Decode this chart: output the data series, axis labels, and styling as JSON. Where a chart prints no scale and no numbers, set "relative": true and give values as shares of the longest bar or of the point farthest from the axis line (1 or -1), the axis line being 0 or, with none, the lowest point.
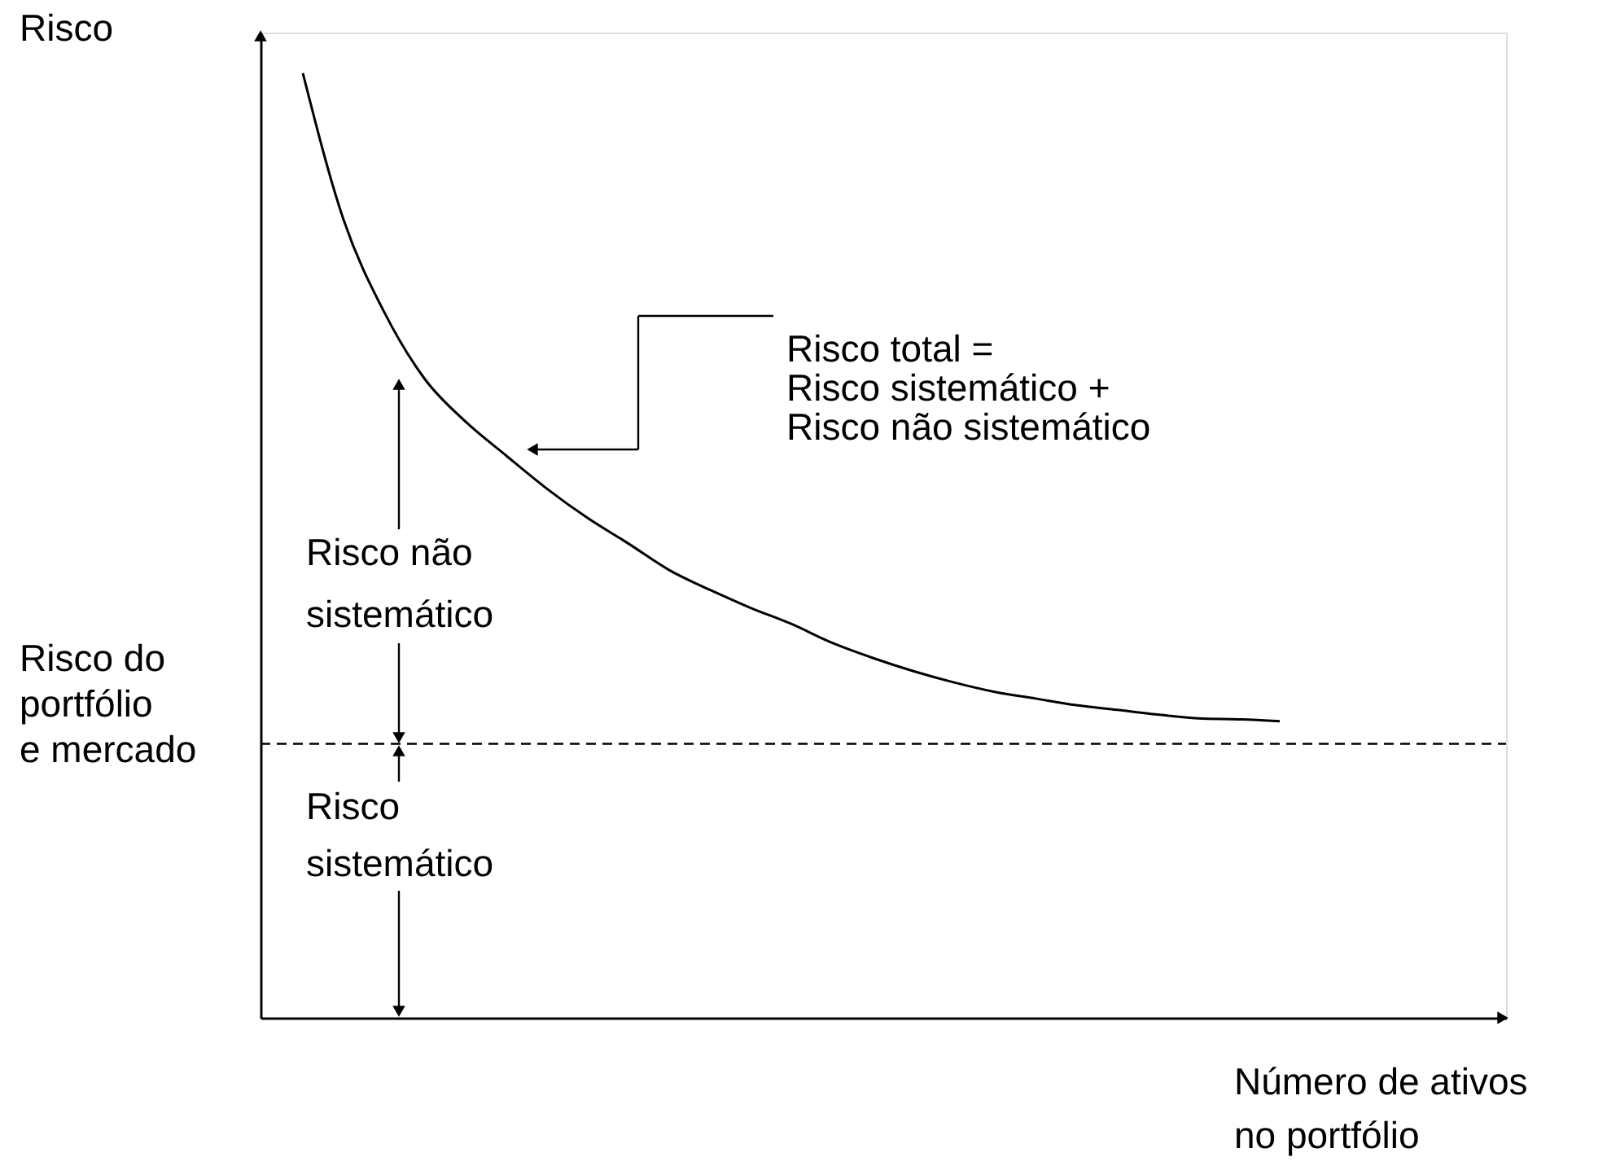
{
  "chart_data": {
    "type": "line",
    "relative": true,
    "ylabel": "Risco",
    "xlabel": "Número de ativos\nno portfólio",
    "categories": [
      null,
      null,
      null,
      null,
      null,
      null,
      null,
      null,
      null,
      null,
      null,
      null,
      null,
      null,
      null,
      null,
      null,
      null,
      null,
      null,
      null,
      null,
      null,
      null,
      null
    ],
    "series": [
      {
        "color": "#000000",
        "values": [
          1.0,
          0.845,
          0.747,
          0.676,
          0.631,
          0.595,
          0.56,
          0.529,
          0.502,
          0.474,
          0.453,
          0.434,
          0.417,
          0.397,
          0.381,
          0.367,
          0.355,
          0.345,
          0.338,
          0.331,
          0.326,
          0.321,
          0.317,
          0.316,
          0.314
        ]
      }
    ],
    "ref_lines": [
      {
        "axis": "y",
        "value": 0.29,
        "label": "Risco do\nportfólio\ne mercado",
        "color": "#000000",
        "line_style": "dashed"
      }
    ],
    "annotations": [
      "Risco total =\nRisco sistemático +\nRisco não sistemático",
      "Risco não\nsistemático",
      "Risco\nsistemático"
    ],
    "grid": false,
    "line_style": "solid"
  }
}
